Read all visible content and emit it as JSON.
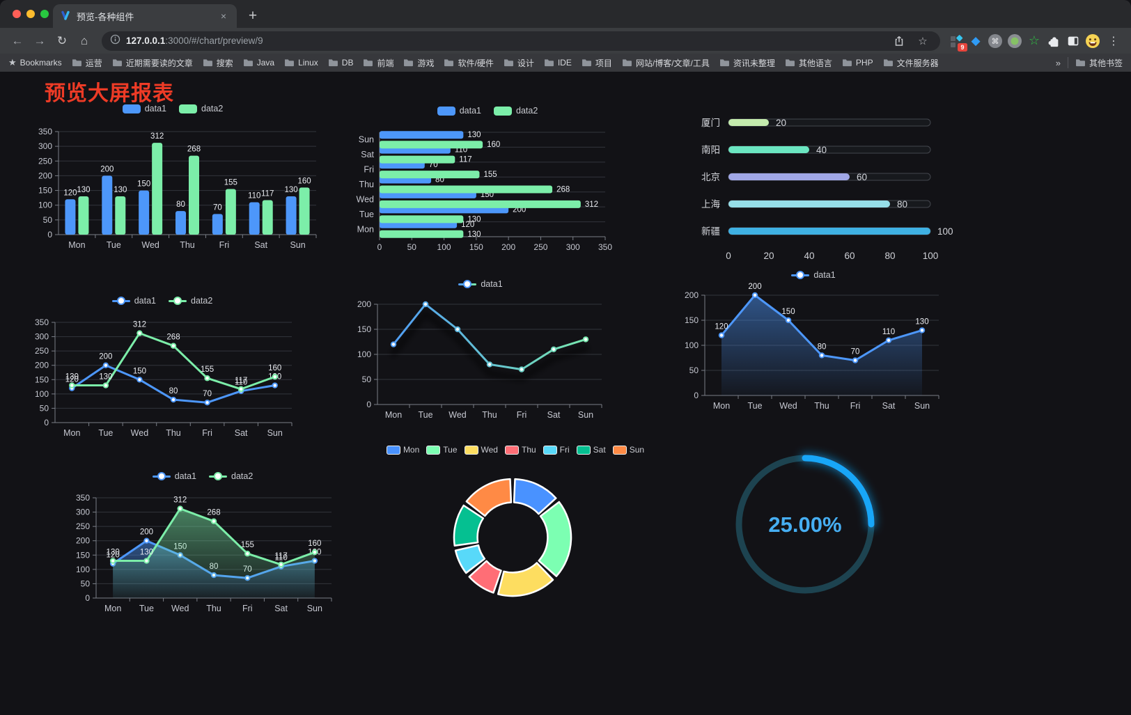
{
  "browser": {
    "tab": {
      "title": "预览-各种组件"
    },
    "url": {
      "host": "127.0.0.1",
      "rest": ":3000/#/chart/preview/9"
    },
    "traffic_lights": [
      "#ff5f57",
      "#febc2e",
      "#28c840"
    ],
    "icons": {
      "back": "←",
      "forward": "→",
      "reload": "↻",
      "home": "⌂",
      "star": "☆",
      "menu": "⋮",
      "close": "×",
      "new_tab": "+",
      "command": "⌘",
      "diamond": "◆",
      "green_star": "☆"
    },
    "extension_badge": "9"
  },
  "bookmarks_bar": {
    "root_label": "Bookmarks",
    "folders": [
      "运营",
      "近期需要读的文章",
      "搜索",
      "Java",
      "Linux",
      "DB",
      "前端",
      "游戏",
      "软件/硬件",
      "设计",
      "IDE",
      "项目",
      "网站/博客/文章/工具",
      "资讯未整理",
      "其他语言",
      "PHP",
      "文件服务器"
    ],
    "overflow_label": "»",
    "other_label": "其他书签"
  },
  "page": {
    "title": "预览大屏报表"
  },
  "palette": {
    "data1_blue": "#4d97fa",
    "data2_green": "#7ceea9",
    "title_red": "#ee3b26",
    "axis": "#7a7e87",
    "grid": "#32353c",
    "tick_text": "#c6c8d1",
    "label_text": "#e9ebf0"
  },
  "chart_data": [
    {
      "id": "bar-vertical",
      "type": "bar",
      "legend_position": "top",
      "categories": [
        "Mon",
        "Tue",
        "Wed",
        "Thu",
        "Fri",
        "Sat",
        "Sun"
      ],
      "series": [
        {
          "name": "data1",
          "color": "#4d97fa",
          "values": [
            120,
            200,
            150,
            80,
            70,
            110,
            130
          ]
        },
        {
          "name": "data2",
          "color": "#7ceea9",
          "values": [
            130,
            130,
            312,
            268,
            155,
            117,
            160
          ]
        }
      ],
      "ylim": [
        0,
        350
      ],
      "ystep": 50,
      "labels": true,
      "grid": true
    },
    {
      "id": "bar-horizontal",
      "type": "bar-h",
      "legend_position": "top",
      "categories": [
        "Mon",
        "Tue",
        "Wed",
        "Thu",
        "Fri",
        "Sat",
        "Sun"
      ],
      "series": [
        {
          "name": "data1",
          "color": "#4d97fa",
          "values": [
            120,
            200,
            150,
            80,
            70,
            110,
            130
          ]
        },
        {
          "name": "data2",
          "color": "#7ceea9",
          "values": [
            130,
            130,
            312,
            268,
            155,
            117,
            160
          ]
        }
      ],
      "xlim": [
        0,
        350
      ],
      "xstep": 50,
      "labels": true,
      "grid": true
    },
    {
      "id": "progress-list",
      "type": "progress",
      "items": [
        {
          "label": "厦门",
          "value": 20,
          "color": "#c4ebad"
        },
        {
          "label": "南阳",
          "value": 40,
          "color": "#6be6c1"
        },
        {
          "label": "北京",
          "value": 60,
          "color": "#a0a7e6"
        },
        {
          "label": "上海",
          "value": 80,
          "color": "#96dee8"
        },
        {
          "label": "新疆",
          "value": 100,
          "color": "#3fb1e3"
        }
      ],
      "xlim": [
        0,
        100
      ],
      "xticks": [
        0,
        20,
        40,
        60,
        80,
        100
      ]
    },
    {
      "id": "line-basic",
      "type": "line",
      "legend_position": "top",
      "categories": [
        "Mon",
        "Tue",
        "Wed",
        "Thu",
        "Fri",
        "Sat",
        "Sun"
      ],
      "series": [
        {
          "name": "data1",
          "color": "#4d97fa",
          "values": [
            120,
            200,
            150,
            80,
            70,
            110,
            130
          ]
        },
        {
          "name": "data2",
          "color": "#7ceea9",
          "values": [
            130,
            130,
            312,
            268,
            155,
            117,
            160
          ]
        }
      ],
      "ylim": [
        0,
        350
      ],
      "ystep": 50,
      "labels": true,
      "grid": true
    },
    {
      "id": "line-gradient",
      "type": "line",
      "legend_position": "top",
      "categories": [
        "Mon",
        "Tue",
        "Wed",
        "Thu",
        "Fri",
        "Sat",
        "Sun"
      ],
      "series": [
        {
          "name": "data1",
          "gradient": [
            "#4d97fa",
            "#7ceea9"
          ],
          "values": [
            120,
            200,
            150,
            80,
            70,
            110,
            130
          ]
        }
      ],
      "ylim": [
        0,
        200
      ],
      "ystep": 50,
      "labels": false,
      "shadow": true,
      "grid": true
    },
    {
      "id": "area-basic",
      "type": "line",
      "legend_position": "top",
      "categories": [
        "Mon",
        "Tue",
        "Wed",
        "Thu",
        "Fri",
        "Sat",
        "Sun"
      ],
      "series": [
        {
          "name": "data1",
          "color": "#4d97fa",
          "values": [
            120,
            200,
            150,
            80,
            70,
            110,
            130
          ],
          "area": true
        }
      ],
      "ylim": [
        0,
        200
      ],
      "ystep": 50,
      "labels": true,
      "grid": true
    },
    {
      "id": "area-double",
      "type": "line",
      "legend_position": "top",
      "categories": [
        "Mon",
        "Tue",
        "Wed",
        "Thu",
        "Fri",
        "Sat",
        "Sun"
      ],
      "series": [
        {
          "name": "data1",
          "color": "#4d97fa",
          "values": [
            120,
            200,
            150,
            80,
            70,
            110,
            130
          ],
          "area": true
        },
        {
          "name": "data2",
          "color": "#7ceea9",
          "values": [
            130,
            130,
            312,
            268,
            155,
            117,
            160
          ],
          "area": true
        }
      ],
      "ylim": [
        0,
        350
      ],
      "ystep": 50,
      "labels": true,
      "grid": true
    },
    {
      "id": "donut",
      "type": "pie",
      "legend_position": "top",
      "categories": [
        "Mon",
        "Tue",
        "Wed",
        "Thu",
        "Fri",
        "Sat",
        "Sun"
      ],
      "values": [
        120,
        200,
        150,
        80,
        70,
        110,
        130
      ],
      "colors": [
        "#4992ff",
        "#7cffb2",
        "#fddd60",
        "#ff6e76",
        "#58d9f9",
        "#05c091",
        "#ff8a45"
      ],
      "border_color": "#ffffff",
      "inner_radius_ratio": 0.6
    },
    {
      "id": "gauge",
      "type": "gauge",
      "value": 25,
      "max": 100,
      "label": "25.00%",
      "color": "#18a6f8",
      "track": "#1d4350",
      "text_color": "#46aef2"
    }
  ]
}
